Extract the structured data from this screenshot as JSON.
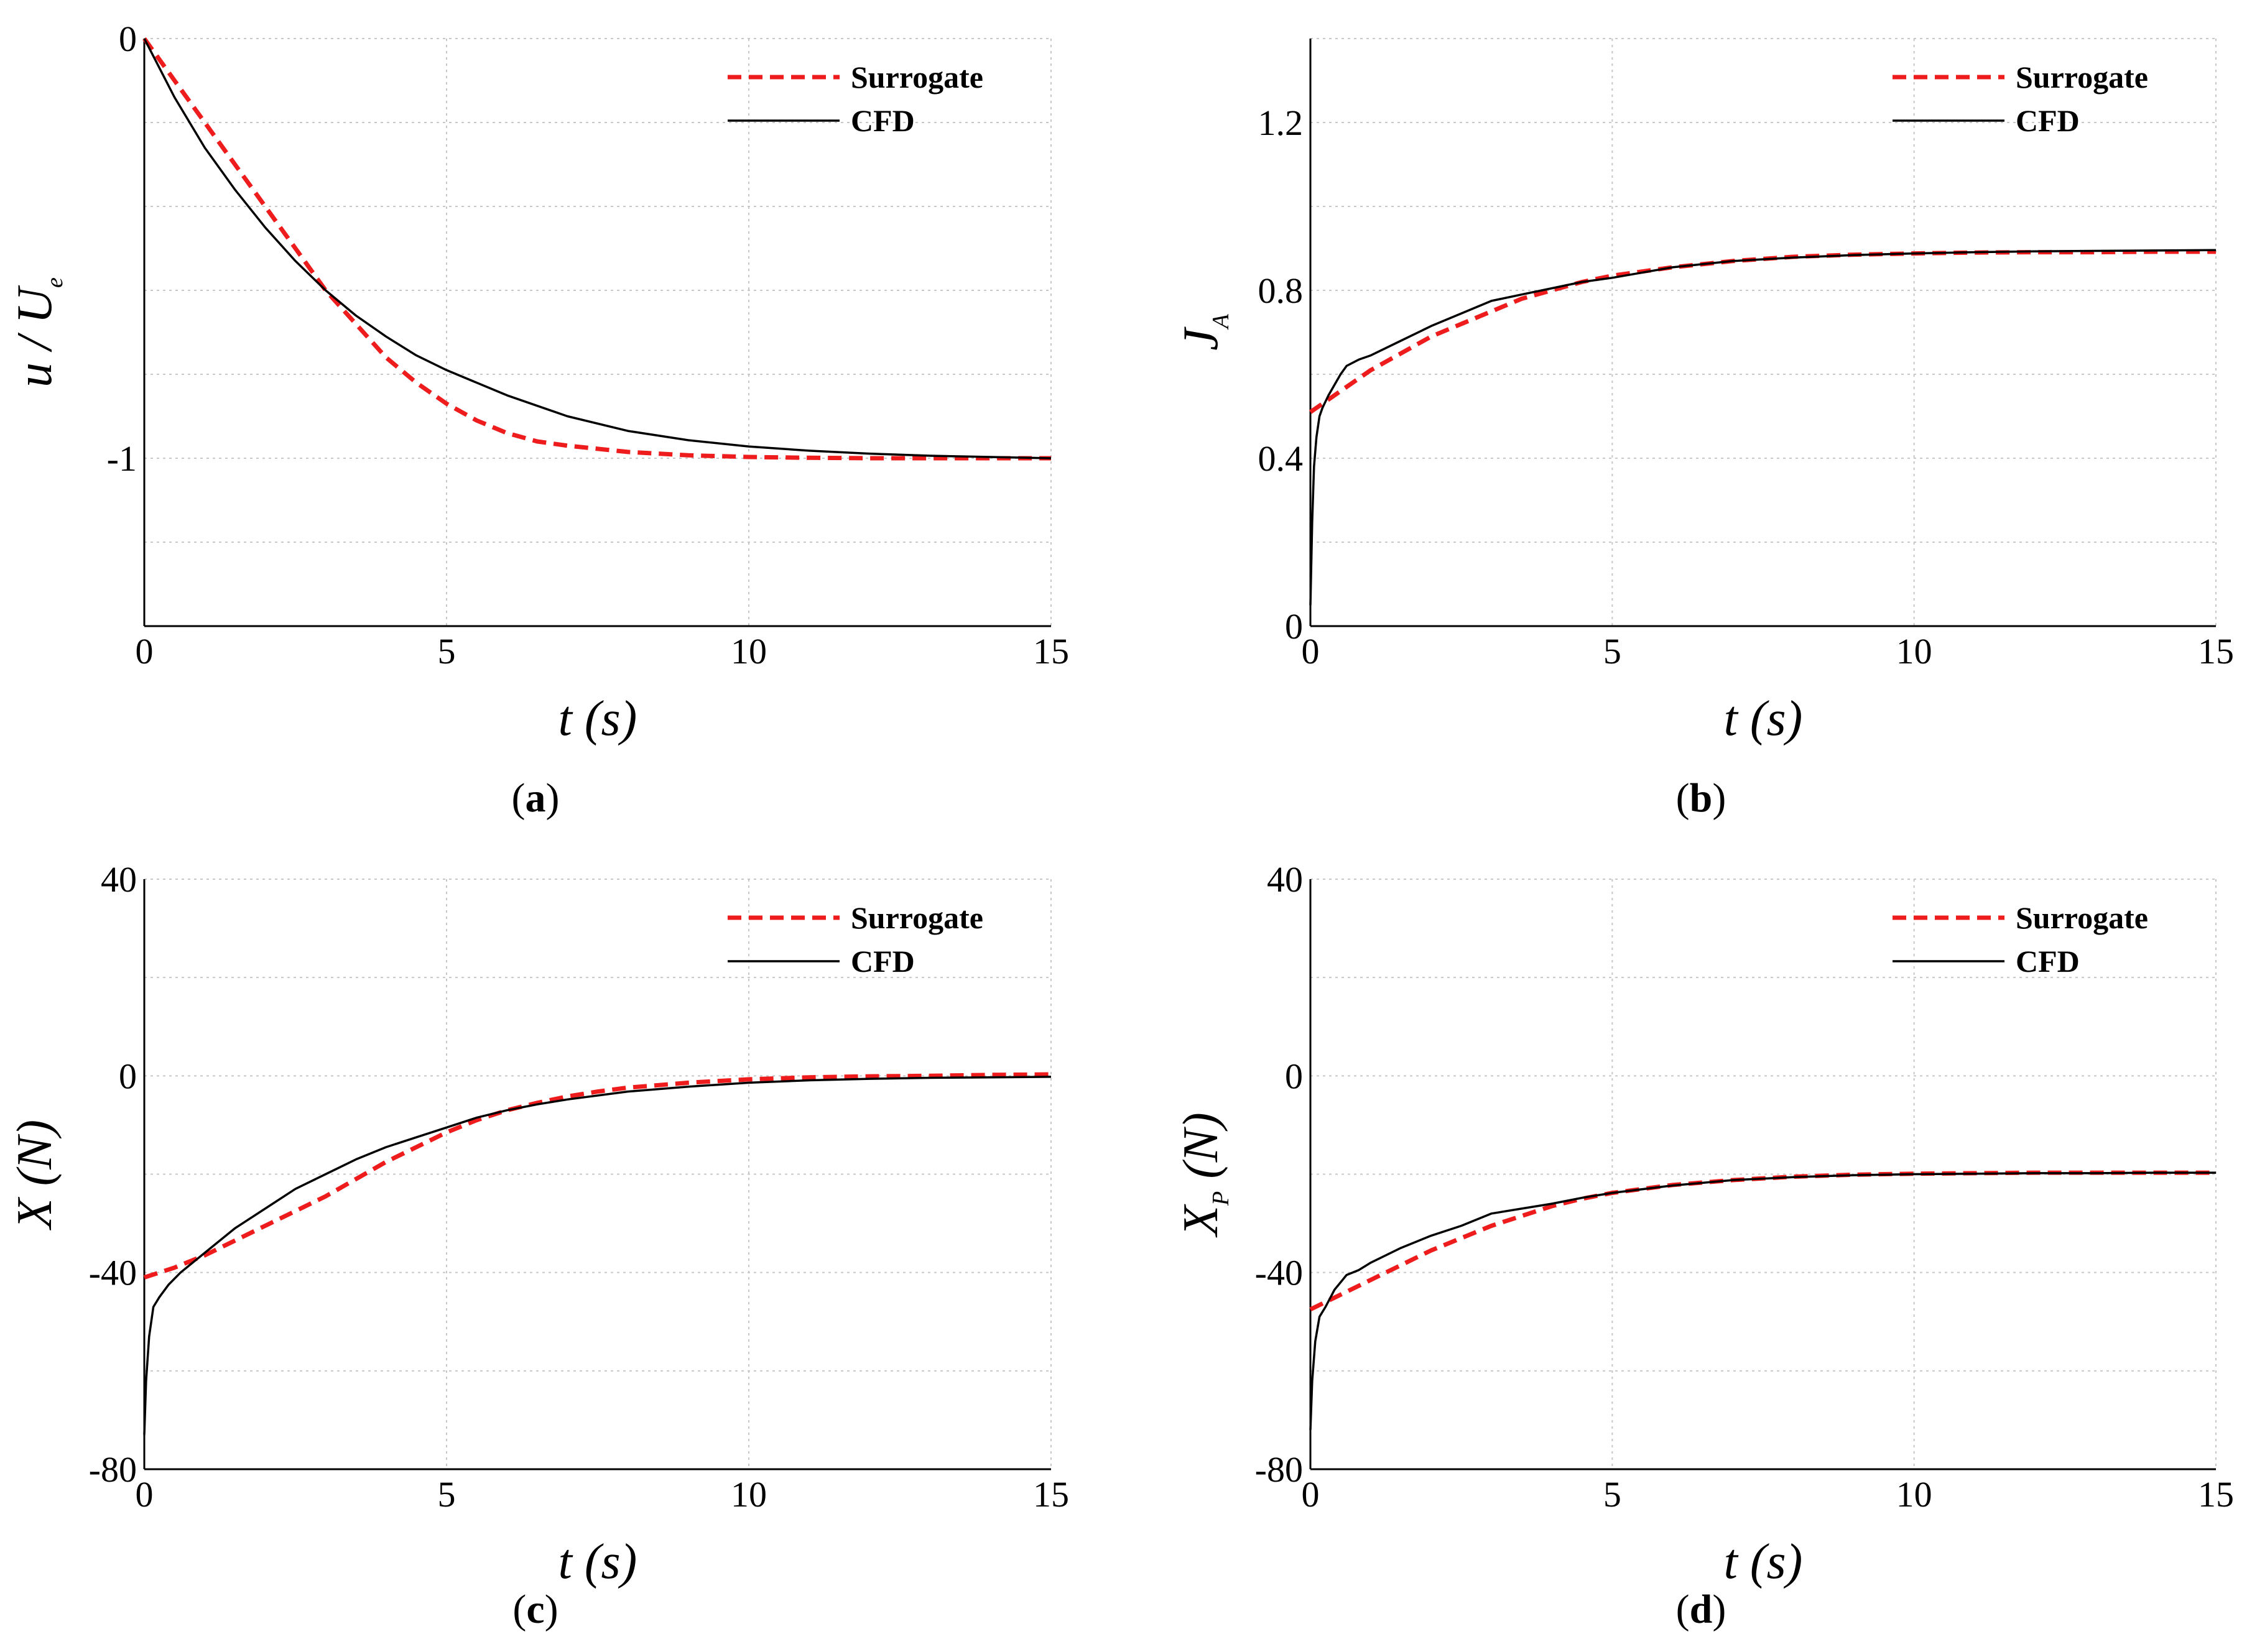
{
  "legend": {
    "surrogate": "Surrogate",
    "cfd": "CFD"
  },
  "colors": {
    "surrogate": "#ee1c1c",
    "cfd": "#000000",
    "grid": "#c8c8c8"
  },
  "chart_data": [
    {
      "id": "a",
      "type": "line",
      "caption_letter": "a",
      "xlabel": "t (s)",
      "ylabel_main": "u / U",
      "ylabel_sub": "e",
      "xlim": [
        0,
        15
      ],
      "ylim": [
        -1.4,
        0
      ],
      "xticks": [
        0,
        5,
        10,
        15
      ],
      "yticks": [
        0,
        -1
      ],
      "ytick_labels": [
        "0",
        "-1"
      ],
      "xtick_labels": [
        "0",
        "5",
        "10",
        "15"
      ],
      "grid_y": [
        -0.2,
        -0.4,
        -0.6,
        -0.8,
        -1.0,
        -1.2
      ],
      "legend_position": "top-right",
      "series": [
        {
          "name": "Surrogate",
          "style": "dashed",
          "x": [
            0,
            0.5,
            1,
            1.5,
            2,
            2.5,
            3,
            3.5,
            4,
            4.5,
            5,
            5.5,
            6,
            6.5,
            7,
            8,
            9,
            10,
            11,
            12,
            13,
            14,
            15
          ],
          "y": [
            0,
            -0.1,
            -0.2,
            -0.3,
            -0.4,
            -0.5,
            -0.6,
            -0.68,
            -0.76,
            -0.82,
            -0.87,
            -0.91,
            -0.94,
            -0.96,
            -0.97,
            -0.985,
            -0.993,
            -0.997,
            -0.999,
            -1.0,
            -1.0,
            -1.0,
            -1.0
          ]
        },
        {
          "name": "CFD",
          "style": "solid",
          "x": [
            0,
            0.5,
            1,
            1.5,
            2,
            2.5,
            3,
            3.5,
            4,
            4.5,
            5,
            6,
            7,
            8,
            9,
            10,
            11,
            12,
            13,
            14,
            15
          ],
          "y": [
            0,
            -0.14,
            -0.26,
            -0.36,
            -0.45,
            -0.53,
            -0.6,
            -0.66,
            -0.71,
            -0.755,
            -0.79,
            -0.85,
            -0.9,
            -0.935,
            -0.957,
            -0.972,
            -0.982,
            -0.989,
            -0.994,
            -0.997,
            -1.0
          ]
        }
      ]
    },
    {
      "id": "b",
      "type": "line",
      "caption_letter": "b",
      "xlabel": "t (s)",
      "ylabel_main": "J",
      "ylabel_sub": "A",
      "xlim": [
        0,
        15
      ],
      "ylim": [
        0,
        1.4
      ],
      "xticks": [
        0,
        5,
        10,
        15
      ],
      "yticks": [
        0,
        0.4,
        0.8,
        1.2
      ],
      "ytick_labels": [
        "0",
        "0.4",
        "0.8",
        "1.2"
      ],
      "xtick_labels": [
        "0",
        "5",
        "10",
        "15"
      ],
      "grid_y": [
        0.2,
        0.4,
        0.6,
        0.8,
        1.0,
        1.2
      ],
      "legend_position": "top-right",
      "series": [
        {
          "name": "Surrogate",
          "style": "dashed",
          "x": [
            0,
            0.5,
            1,
            1.5,
            2,
            2.5,
            3,
            3.5,
            4,
            4.5,
            5,
            6,
            7,
            8,
            9,
            10,
            11,
            12,
            13,
            14,
            15
          ],
          "y": [
            0.51,
            0.56,
            0.61,
            0.65,
            0.69,
            0.72,
            0.75,
            0.78,
            0.8,
            0.82,
            0.835,
            0.855,
            0.87,
            0.88,
            0.885,
            0.888,
            0.89,
            0.891,
            0.891,
            0.892,
            0.892
          ]
        },
        {
          "name": "CFD",
          "style": "solid",
          "x": [
            0,
            0.03,
            0.06,
            0.1,
            0.15,
            0.2,
            0.3,
            0.5,
            0.6,
            0.8,
            1,
            1.5,
            2,
            2.5,
            3,
            3.5,
            4,
            4.5,
            5,
            6,
            7,
            8,
            9,
            10,
            11,
            12,
            13,
            14,
            15
          ],
          "y": [
            0.05,
            0.25,
            0.38,
            0.45,
            0.5,
            0.52,
            0.55,
            0.6,
            0.62,
            0.635,
            0.645,
            0.68,
            0.715,
            0.745,
            0.775,
            0.79,
            0.805,
            0.82,
            0.83,
            0.855,
            0.87,
            0.878,
            0.884,
            0.888,
            0.891,
            0.893,
            0.894,
            0.895,
            0.896
          ]
        }
      ]
    },
    {
      "id": "c",
      "type": "line",
      "caption_letter": "c",
      "xlabel": "t (s)",
      "ylabel_main": "X (N)",
      "ylabel_sub": "",
      "xlim": [
        0,
        15
      ],
      "ylim": [
        -80,
        40
      ],
      "xticks": [
        0,
        5,
        10,
        15
      ],
      "yticks": [
        40,
        0,
        -40,
        -80
      ],
      "ytick_labels": [
        "40",
        "0",
        "-40",
        "-80"
      ],
      "xtick_labels": [
        "0",
        "5",
        "10",
        "15"
      ],
      "grid_y": [
        -60,
        -40,
        -20,
        0,
        20
      ],
      "legend_position": "top-right",
      "series": [
        {
          "name": "Surrogate",
          "style": "dashed",
          "x": [
            0,
            0.5,
            1,
            1.5,
            2,
            2.5,
            3,
            3.5,
            4,
            4.5,
            5,
            5.5,
            6,
            6.5,
            7,
            7.5,
            8,
            9,
            10,
            11,
            12,
            13,
            14,
            15
          ],
          "y": [
            -41,
            -39,
            -36.5,
            -33.5,
            -30.5,
            -27.5,
            -24.5,
            -21,
            -17.5,
            -14.5,
            -11.5,
            -9,
            -7,
            -5.5,
            -4.2,
            -3.2,
            -2.4,
            -1.4,
            -0.7,
            -0.3,
            -0.1,
            0,
            0.2,
            0.3
          ]
        },
        {
          "name": "CFD",
          "style": "solid",
          "x": [
            0,
            0.03,
            0.08,
            0.15,
            0.25,
            0.4,
            0.6,
            0.8,
            1,
            1.5,
            2,
            2.5,
            3,
            3.5,
            4,
            4.5,
            5,
            5.5,
            6,
            6.5,
            7,
            8,
            9,
            10,
            11,
            12,
            13,
            14,
            15
          ],
          "y": [
            -73,
            -62,
            -53,
            -47,
            -45,
            -42.5,
            -40,
            -38,
            -36,
            -31,
            -27,
            -23,
            -20,
            -17,
            -14.5,
            -12.5,
            -10.5,
            -8.5,
            -7,
            -5.8,
            -4.8,
            -3.2,
            -2.2,
            -1.4,
            -0.9,
            -0.6,
            -0.4,
            -0.3,
            -0.2
          ]
        }
      ]
    },
    {
      "id": "d",
      "type": "line",
      "caption_letter": "d",
      "xlabel": "t (s)",
      "ylabel_main": "X",
      "ylabel_sub": "P",
      "ylabel_suffix": " (N)",
      "xlim": [
        0,
        15
      ],
      "ylim": [
        -80,
        40
      ],
      "xticks": [
        0,
        5,
        10,
        15
      ],
      "yticks": [
        40,
        0,
        -40,
        -80
      ],
      "ytick_labels": [
        "40",
        "0",
        "-40",
        "-80"
      ],
      "xtick_labels": [
        "0",
        "5",
        "10",
        "15"
      ],
      "grid_y": [
        -60,
        -40,
        -20,
        0,
        20
      ],
      "legend_position": "top-right",
      "series": [
        {
          "name": "Surrogate",
          "style": "dashed",
          "x": [
            0,
            0.5,
            1,
            1.5,
            2,
            2.5,
            3,
            3.5,
            4,
            4.5,
            5,
            6,
            7,
            8,
            9,
            10,
            11,
            12,
            13,
            14,
            15
          ],
          "y": [
            -47.5,
            -44.5,
            -41.5,
            -38.5,
            -35.5,
            -33,
            -30.5,
            -28.5,
            -26.5,
            -25,
            -23.8,
            -22.2,
            -21.2,
            -20.5,
            -20.1,
            -19.9,
            -19.8,
            -19.7,
            -19.7,
            -19.7,
            -19.7
          ]
        },
        {
          "name": "CFD",
          "style": "solid",
          "x": [
            0,
            0.03,
            0.08,
            0.15,
            0.25,
            0.4,
            0.6,
            0.8,
            1,
            1.5,
            2,
            2.5,
            3,
            3.5,
            4,
            4.5,
            5,
            6,
            7,
            8,
            9,
            10,
            11,
            12,
            13,
            14,
            15
          ],
          "y": [
            -72,
            -62,
            -54,
            -49,
            -47,
            -43.5,
            -40.5,
            -39.5,
            -38,
            -35,
            -32.5,
            -30.5,
            -28,
            -27,
            -26,
            -24.8,
            -23.8,
            -22.3,
            -21.2,
            -20.6,
            -20.2,
            -20,
            -19.9,
            -19.8,
            -19.8,
            -19.7,
            -19.7
          ]
        }
      ]
    }
  ]
}
